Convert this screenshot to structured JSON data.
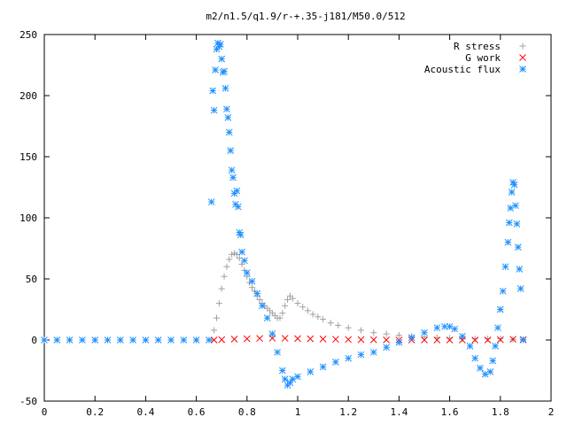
{
  "chart_data": {
    "type": "scatter",
    "title": "m2/n1.5/q1.9/r-+.35-j181/M50.0/512",
    "xlabel": "",
    "ylabel": "",
    "xlim": [
      0,
      2
    ],
    "ylim": [
      -50,
      250
    ],
    "x_ticks": [
      0,
      0.2,
      0.4,
      0.6,
      0.8,
      1,
      1.2,
      1.4,
      1.6,
      1.8,
      2
    ],
    "x_tick_labels": [
      "0",
      "0.2",
      "0.4",
      "0.6",
      "0.8",
      "1",
      "1.2",
      "1.4",
      "1.6",
      "1.8",
      "2"
    ],
    "y_ticks": [
      -50,
      0,
      50,
      100,
      150,
      200,
      250
    ],
    "y_tick_labels": [
      "-50",
      "0",
      "50",
      "100",
      "150",
      "200",
      "250"
    ],
    "grid": false,
    "legend_placement": "top-right",
    "series": [
      {
        "name": "R stress",
        "marker": "+",
        "color": "#a0a0a0",
        "points": [
          [
            0.0,
            0
          ],
          [
            0.1,
            0
          ],
          [
            0.2,
            0
          ],
          [
            0.3,
            0
          ],
          [
            0.4,
            0
          ],
          [
            0.5,
            0
          ],
          [
            0.6,
            0
          ],
          [
            0.66,
            0
          ],
          [
            0.67,
            8
          ],
          [
            0.68,
            18
          ],
          [
            0.69,
            30
          ],
          [
            0.7,
            42
          ],
          [
            0.71,
            52
          ],
          [
            0.72,
            60
          ],
          [
            0.73,
            66
          ],
          [
            0.74,
            70
          ],
          [
            0.75,
            71
          ],
          [
            0.76,
            70
          ],
          [
            0.77,
            67
          ],
          [
            0.78,
            62
          ],
          [
            0.79,
            57
          ],
          [
            0.8,
            52
          ],
          [
            0.81,
            47
          ],
          [
            0.82,
            43
          ],
          [
            0.83,
            40
          ],
          [
            0.84,
            36
          ],
          [
            0.85,
            33
          ],
          [
            0.86,
            30
          ],
          [
            0.87,
            28
          ],
          [
            0.88,
            26
          ],
          [
            0.89,
            24
          ],
          [
            0.9,
            22
          ],
          [
            0.91,
            20
          ],
          [
            0.92,
            18
          ],
          [
            0.93,
            18
          ],
          [
            0.94,
            22
          ],
          [
            0.95,
            28
          ],
          [
            0.96,
            33
          ],
          [
            0.97,
            36
          ],
          [
            0.98,
            34
          ],
          [
            1.0,
            30
          ],
          [
            1.02,
            27
          ],
          [
            1.04,
            24
          ],
          [
            1.06,
            21
          ],
          [
            1.08,
            19
          ],
          [
            1.1,
            17
          ],
          [
            1.13,
            14
          ],
          [
            1.16,
            12
          ],
          [
            1.2,
            10
          ],
          [
            1.25,
            8
          ],
          [
            1.3,
            6
          ],
          [
            1.35,
            5
          ],
          [
            1.4,
            4
          ],
          [
            1.45,
            3
          ],
          [
            1.5,
            2.5
          ],
          [
            1.55,
            2
          ],
          [
            1.6,
            1.5
          ],
          [
            1.65,
            1.2
          ],
          [
            1.7,
            1
          ],
          [
            1.75,
            1
          ],
          [
            1.8,
            1
          ],
          [
            1.85,
            0.5
          ],
          [
            1.89,
            0.5
          ]
        ]
      },
      {
        "name": "G work",
        "marker": "x",
        "color": "#ff0000",
        "points": [
          [
            0.67,
            0
          ],
          [
            0.7,
            0.3
          ],
          [
            0.75,
            0.7
          ],
          [
            0.8,
            1
          ],
          [
            0.85,
            1.3
          ],
          [
            0.9,
            1.5
          ],
          [
            0.95,
            1.4
          ],
          [
            1.0,
            1.2
          ],
          [
            1.05,
            1
          ],
          [
            1.1,
            0.8
          ],
          [
            1.15,
            0.6
          ],
          [
            1.2,
            0.4
          ],
          [
            1.25,
            0.3
          ],
          [
            1.3,
            0.2
          ],
          [
            1.35,
            0.1
          ],
          [
            1.4,
            0
          ],
          [
            1.45,
            0
          ],
          [
            1.5,
            0
          ],
          [
            1.55,
            0
          ],
          [
            1.6,
            0
          ],
          [
            1.65,
            0
          ],
          [
            1.7,
            0
          ],
          [
            1.75,
            0
          ],
          [
            1.8,
            0.3
          ],
          [
            1.85,
            0.6
          ],
          [
            1.89,
            0.4
          ]
        ]
      },
      {
        "name": "Acoustic flux",
        "marker": "*",
        "color": "#1e90ff",
        "points": [
          [
            0.0,
            0
          ],
          [
            0.05,
            0
          ],
          [
            0.1,
            0
          ],
          [
            0.15,
            0
          ],
          [
            0.2,
            0
          ],
          [
            0.25,
            0
          ],
          [
            0.3,
            0
          ],
          [
            0.35,
            0
          ],
          [
            0.4,
            0
          ],
          [
            0.45,
            0
          ],
          [
            0.5,
            0
          ],
          [
            0.55,
            0
          ],
          [
            0.6,
            0
          ],
          [
            0.65,
            0
          ],
          [
            0.66,
            113
          ],
          [
            0.665,
            204
          ],
          [
            0.67,
            188
          ],
          [
            0.675,
            221
          ],
          [
            0.68,
            238
          ],
          [
            0.685,
            243
          ],
          [
            0.69,
            240
          ],
          [
            0.695,
            242
          ],
          [
            0.7,
            230
          ],
          [
            0.705,
            219
          ],
          [
            0.71,
            220
          ],
          [
            0.715,
            206
          ],
          [
            0.72,
            189
          ],
          [
            0.725,
            182
          ],
          [
            0.73,
            170
          ],
          [
            0.735,
            155
          ],
          [
            0.74,
            139
          ],
          [
            0.745,
            133
          ],
          [
            0.75,
            120
          ],
          [
            0.755,
            111
          ],
          [
            0.76,
            122
          ],
          [
            0.765,
            109
          ],
          [
            0.77,
            88
          ],
          [
            0.775,
            86
          ],
          [
            0.78,
            72
          ],
          [
            0.79,
            65
          ],
          [
            0.8,
            55
          ],
          [
            0.82,
            48
          ],
          [
            0.84,
            38
          ],
          [
            0.86,
            28
          ],
          [
            0.88,
            18
          ],
          [
            0.9,
            5
          ],
          [
            0.92,
            -10
          ],
          [
            0.94,
            -25
          ],
          [
            0.95,
            -32
          ],
          [
            0.96,
            -37
          ],
          [
            0.97,
            -35
          ],
          [
            0.98,
            -32
          ],
          [
            1.0,
            -30
          ],
          [
            1.05,
            -26
          ],
          [
            1.1,
            -22
          ],
          [
            1.15,
            -18
          ],
          [
            1.2,
            -15
          ],
          [
            1.25,
            -12
          ],
          [
            1.3,
            -10
          ],
          [
            1.35,
            -6
          ],
          [
            1.4,
            -2
          ],
          [
            1.45,
            2
          ],
          [
            1.5,
            6
          ],
          [
            1.55,
            10
          ],
          [
            1.58,
            11
          ],
          [
            1.6,
            11
          ],
          [
            1.62,
            9
          ],
          [
            1.65,
            3
          ],
          [
            1.68,
            -5
          ],
          [
            1.7,
            -15
          ],
          [
            1.72,
            -23
          ],
          [
            1.74,
            -28
          ],
          [
            1.76,
            -26
          ],
          [
            1.77,
            -17
          ],
          [
            1.78,
            -5
          ],
          [
            1.79,
            10
          ],
          [
            1.8,
            25
          ],
          [
            1.81,
            40
          ],
          [
            1.82,
            60
          ],
          [
            1.83,
            80
          ],
          [
            1.835,
            96
          ],
          [
            1.84,
            108
          ],
          [
            1.845,
            121
          ],
          [
            1.85,
            129
          ],
          [
            1.855,
            127
          ],
          [
            1.86,
            110
          ],
          [
            1.865,
            95
          ],
          [
            1.87,
            76
          ],
          [
            1.875,
            58
          ],
          [
            1.88,
            42
          ],
          [
            1.89,
            0
          ]
        ]
      }
    ]
  }
}
